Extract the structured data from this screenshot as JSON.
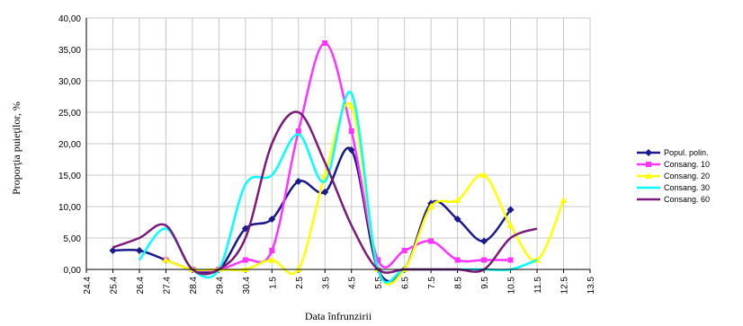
{
  "chart_data": {
    "type": "line",
    "xlabel": "Data înfrunzirii",
    "ylabel": "Proporţia puieţilor, %",
    "categories": [
      "24.4",
      "25.4",
      "26.4",
      "27.4",
      "28.4",
      "29.4",
      "30.4",
      "1.5",
      "2.5",
      "3.5",
      "4.5",
      "5.5",
      "6.5",
      "7.5",
      "8.5",
      "9.5",
      "10.5",
      "11.5",
      "12.5",
      "13.5"
    ],
    "ylim": [
      0,
      40
    ],
    "yticks": [
      "0,00",
      "5,00",
      "10,00",
      "15,00",
      "20,00",
      "25,00",
      "30,00",
      "35,00",
      "40,00"
    ],
    "grid": true,
    "legend_position": "right",
    "series": [
      {
        "name": "Popul. polin.",
        "color": "#1a1a8c",
        "marker": "diamond",
        "values": [
          null,
          3.0,
          3.0,
          1.5,
          0.0,
          0.0,
          6.5,
          8.0,
          14.0,
          12.3,
          19.0,
          0.0,
          0.0,
          10.5,
          8.0,
          4.5,
          9.5,
          null,
          null,
          null
        ]
      },
      {
        "name": "Consang. 10",
        "color": "#ff33ff",
        "marker": "square",
        "values": [
          null,
          null,
          null,
          1.5,
          0.0,
          0.0,
          1.5,
          3.0,
          22.0,
          36.0,
          22.0,
          1.5,
          3.0,
          4.5,
          1.5,
          1.5,
          1.5,
          null,
          null,
          null
        ]
      },
      {
        "name": "Consang. 20",
        "color": "#ffff00",
        "marker": "triangle",
        "values": [
          null,
          null,
          null,
          1.5,
          0.0,
          0.0,
          0.0,
          1.5,
          0.0,
          15.0,
          26.0,
          0.0,
          0.0,
          10.0,
          11.0,
          15.0,
          7.0,
          1.5,
          11.0,
          null
        ]
      },
      {
        "name": "Consang. 30",
        "color": "#00ffff",
        "marker": "none",
        "values": [
          null,
          null,
          1.5,
          6.5,
          0.0,
          0.0,
          13.5,
          15.0,
          21.5,
          14.0,
          28.0,
          0.0,
          0.0,
          0.0,
          0.0,
          0.0,
          0.0,
          1.5,
          null,
          null
        ]
      },
      {
        "name": "Consang. 60",
        "color": "#7a1a7a",
        "marker": "none",
        "values": [
          null,
          3.5,
          5.0,
          7.0,
          0.0,
          0.0,
          5.0,
          20.0,
          25.0,
          17.0,
          7.0,
          0.0,
          0.0,
          0.0,
          0.0,
          0.0,
          5.0,
          6.5,
          null,
          null
        ]
      }
    ]
  }
}
